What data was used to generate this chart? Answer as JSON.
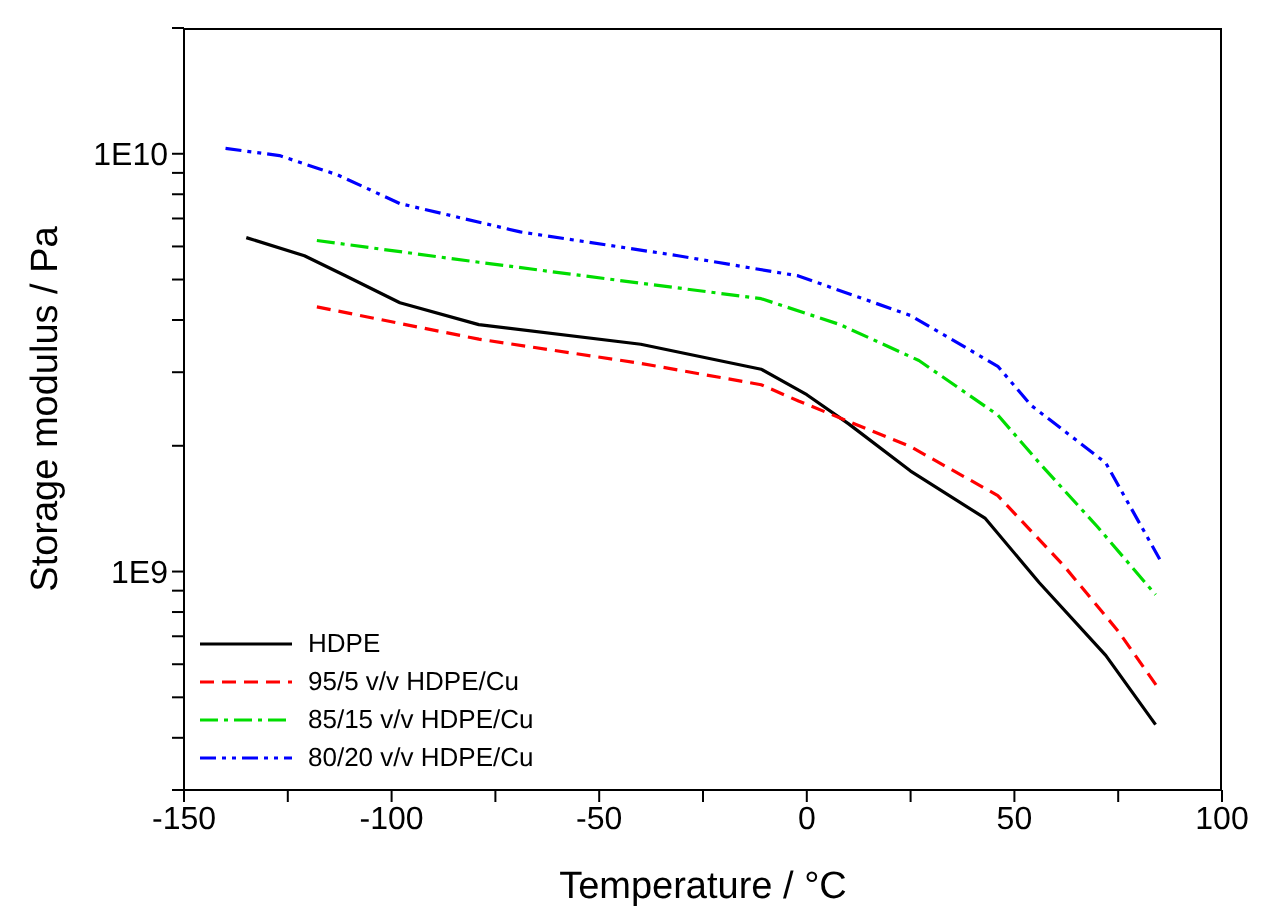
{
  "chart_data": {
    "type": "line",
    "xlabel": "Temperature / °C",
    "ylabel": "Storage modulus / Pa",
    "log": "y",
    "legend": "bottom left",
    "marker": "none",
    "xlim": [
      -150,
      100
    ],
    "xticks": [
      -150,
      {
        "value": -125,
        "label": null
      },
      -100,
      {
        "value": -75,
        "label": null
      },
      -50,
      {
        "value": -25,
        "label": null
      },
      0,
      {
        "value": 25,
        "label": null
      },
      50,
      {
        "value": 75,
        "label": null
      },
      100
    ],
    "ylim": [
      300000000,
      20000000000
    ],
    "yticks": [
      {
        "value": 300000000,
        "label": null
      },
      {
        "value": 400000000,
        "label": null
      },
      {
        "value": 500000000,
        "label": null
      },
      {
        "value": 600000000,
        "label": null
      },
      {
        "value": 700000000,
        "label": null
      },
      {
        "value": 800000000,
        "label": null
      },
      {
        "value": 900000000,
        "label": null
      },
      {
        "value": 1000000000,
        "label": "1E9"
      },
      {
        "value": 2000000000,
        "label": null
      },
      {
        "value": 3000000000,
        "label": null
      },
      {
        "value": 4000000000,
        "label": null
      },
      {
        "value": 5000000000,
        "label": null
      },
      {
        "value": 6000000000,
        "label": null
      },
      {
        "value": 7000000000,
        "label": null
      },
      {
        "value": 8000000000,
        "label": null
      },
      {
        "value": 9000000000,
        "label": null
      },
      {
        "value": 10000000000,
        "label": "1E10"
      },
      {
        "value": 20000000000,
        "label": null
      }
    ],
    "series": [
      {
        "name": "HDPE",
        "color": "#000000",
        "line_style": "solid",
        "x": [
          -135,
          -121,
          -111,
          -98,
          -79,
          -40,
          -11,
          0,
          10,
          25,
          43,
          56,
          72,
          84
        ],
        "values": [
          6300000000,
          5700000000,
          5100000000,
          4400000000,
          3900000000,
          3500000000,
          3050000000,
          2650000000,
          2260000000,
          1740000000,
          1340000000,
          940000000,
          630000000,
          430000000
        ]
      },
      {
        "name": "95/5 v/v HDPE/Cu",
        "color": "#ff0000",
        "line_style": "dashed",
        "x": [
          -118,
          -79,
          -40,
          -11,
          -2,
          25,
          46,
          62,
          75,
          85
        ],
        "values": [
          4300000000,
          3600000000,
          3150000000,
          2800000000,
          2560000000,
          1990000000,
          1520000000,
          1030000000,
          720000000,
          520000000
        ]
      },
      {
        "name": "85/15 v/v HDPE/Cu",
        "color": "#00dd00",
        "line_style": "dashdot",
        "x": [
          -118,
          -79,
          -40,
          -11,
          8,
          27,
          46,
          56,
          70,
          84
        ],
        "values": [
          6200000000,
          5500000000,
          4900000000,
          4500000000,
          3900000000,
          3200000000,
          2370000000,
          1820000000,
          1280000000,
          880000000
        ]
      },
      {
        "name": "80/20 v/v HDPE/Cu",
        "color": "#0000ff",
        "line_style": "dashdotdot",
        "x": [
          -140,
          -127,
          -113,
          -98,
          -69,
          -31,
          -2,
          25,
          46,
          54,
          72,
          85
        ],
        "values": [
          10300000000,
          9900000000,
          8900000000,
          7600000000,
          6500000000,
          5700000000,
          5100000000,
          4100000000,
          3100000000,
          2500000000,
          1820000000,
          1070000000
        ]
      }
    ]
  }
}
